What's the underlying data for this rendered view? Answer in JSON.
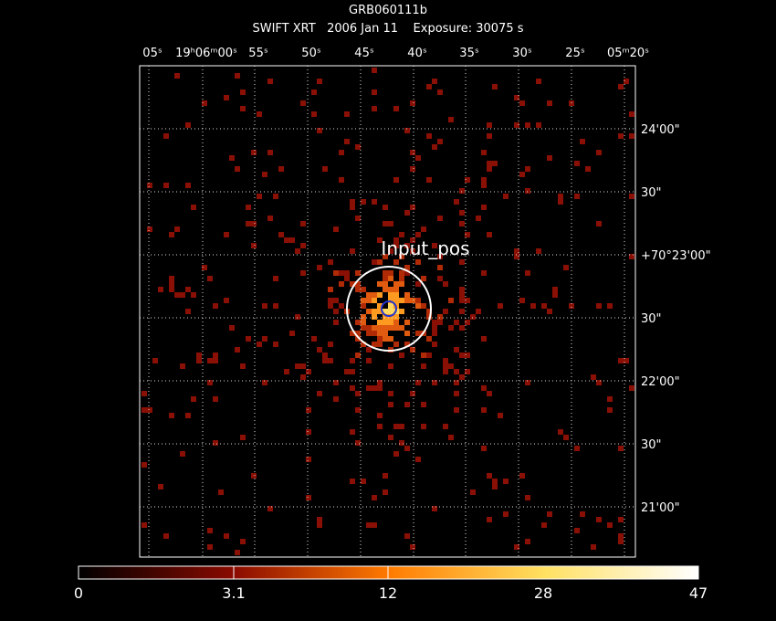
{
  "header": {
    "title": "GRB060111b",
    "subtitle": "SWIFT XRT   2006 Jan 11    Exposure: 30075 s"
  },
  "top_axis_labels": [
    "05ˢ",
    "19ʰ06ᵐ00ˢ",
    "55ˢ",
    "50ˢ",
    "45ˢ",
    "40ˢ",
    "35ˢ",
    "30ˢ",
    "25ˢ",
    "05ᵐ20ˢ"
  ],
  "right_axis_labels": [
    "24'00\"",
    "30\"",
    "+70°23'00\"",
    "30\"",
    "22'00\"",
    "30\"",
    "21'00\""
  ],
  "annotation": "Input_pos",
  "colorbar_labels": [
    "0",
    "3.1",
    "12",
    "28",
    "47"
  ]
}
